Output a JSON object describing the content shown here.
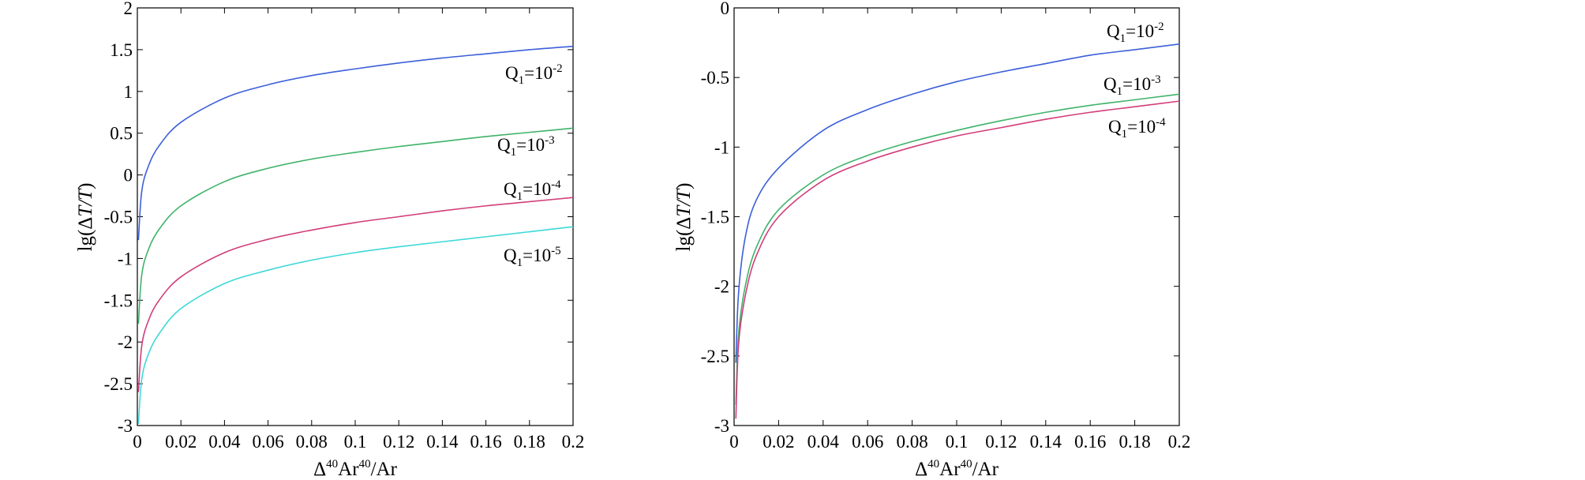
{
  "chart_data": [
    {
      "type": "line",
      "title": "",
      "xlabel": {
        "delta": "Δ",
        "sup1": "40",
        "mid": "Ar",
        "sup2": "40",
        "tail": "/Ar"
      },
      "ylabel": {
        "pre": "lg(",
        "delta": "Δ",
        "ital": "T/T",
        "post": ")"
      },
      "xlim": [
        0,
        0.2
      ],
      "ylim": [
        -3,
        2
      ],
      "xticks": [
        "0",
        "0.02",
        "0.04",
        "0.06",
        "0.08",
        "0.1",
        "0.12",
        "0.14",
        "0.16",
        "0.18",
        "0.2"
      ],
      "yticks": [
        "2",
        "1.5",
        "1",
        "0.5",
        "0",
        "-0.5",
        "-1",
        "-1.5",
        "-2",
        "-2.5",
        "-3"
      ],
      "grid": false,
      "series": [
        {
          "name": "Q1=10-2",
          "label": {
            "q": "Q",
            "sub": "1",
            "eq": "=10",
            "exp": "-2"
          },
          "color": "#3b5fd9",
          "x": [
            0.0005,
            0.002,
            0.005,
            0.01,
            0.02,
            0.04,
            0.06,
            0.08,
            0.1,
            0.12,
            0.14,
            0.16,
            0.18,
            0.2
          ],
          "y": [
            -0.78,
            -0.2,
            0.1,
            0.35,
            0.63,
            0.92,
            1.08,
            1.19,
            1.27,
            1.34,
            1.4,
            1.45,
            1.5,
            1.54
          ]
        },
        {
          "name": "Q1=10-3",
          "label": {
            "q": "Q",
            "sub": "1",
            "eq": "=10",
            "exp": "-3"
          },
          "color": "#3fb36a",
          "x": [
            0.0005,
            0.002,
            0.005,
            0.01,
            0.02,
            0.04,
            0.06,
            0.08,
            0.1,
            0.12,
            0.14,
            0.16,
            0.18,
            0.2
          ],
          "y": [
            -1.78,
            -1.2,
            -0.9,
            -0.65,
            -0.37,
            -0.08,
            0.08,
            0.19,
            0.27,
            0.34,
            0.4,
            0.46,
            0.51,
            0.56
          ]
        },
        {
          "name": "Q1=10-4",
          "label": {
            "q": "Q",
            "sub": "1",
            "eq": "=10",
            "exp": "-4"
          },
          "color": "#d23d7a",
          "x": [
            0.0005,
            0.002,
            0.005,
            0.01,
            0.02,
            0.04,
            0.06,
            0.08,
            0.1,
            0.12,
            0.14,
            0.16,
            0.18,
            0.2
          ],
          "y": [
            -2.6,
            -2.05,
            -1.75,
            -1.5,
            -1.22,
            -0.93,
            -0.77,
            -0.66,
            -0.57,
            -0.5,
            -0.43,
            -0.37,
            -0.32,
            -0.27
          ]
        },
        {
          "name": "Q1=10-5",
          "label": {
            "q": "Q",
            "sub": "1",
            "eq": "=10",
            "exp": "-5"
          },
          "color": "#3fd8d8",
          "x": [
            0.0005,
            0.002,
            0.005,
            0.01,
            0.02,
            0.04,
            0.06,
            0.08,
            0.1,
            0.12,
            0.14,
            0.16,
            0.18,
            0.2
          ],
          "y": [
            -2.98,
            -2.45,
            -2.15,
            -1.9,
            -1.6,
            -1.3,
            -1.14,
            -1.02,
            -0.93,
            -0.86,
            -0.8,
            -0.74,
            -0.68,
            -0.62
          ]
        }
      ]
    },
    {
      "type": "line",
      "title": "",
      "xlabel": {
        "delta": "Δ",
        "sup1": "40",
        "mid": "Ar",
        "sup2": "40",
        "tail": "/Ar"
      },
      "ylabel": {
        "pre": "lg(",
        "delta": "Δ",
        "ital": "T/T",
        "post": ")"
      },
      "xlim": [
        0,
        0.2
      ],
      "ylim": [
        -3,
        0
      ],
      "xticks": [
        "0",
        "0.02",
        "0.04",
        "0.06",
        "0.08",
        "0.1",
        "0.12",
        "0.14",
        "0.16",
        "0.18",
        "0.2"
      ],
      "yticks": [
        "0",
        "-0.5",
        "-1",
        "-1.5",
        "-2",
        "-2.5",
        "-3"
      ],
      "grid": false,
      "series": [
        {
          "name": "Q1=10-2",
          "label": {
            "q": "Q",
            "sub": "1",
            "eq": "=10",
            "exp": "-2"
          },
          "color": "#3b5fd9",
          "x": [
            0.0008,
            0.002,
            0.005,
            0.01,
            0.02,
            0.04,
            0.06,
            0.08,
            0.1,
            0.12,
            0.14,
            0.16,
            0.18,
            0.2
          ],
          "y": [
            -2.55,
            -2.05,
            -1.65,
            -1.38,
            -1.15,
            -0.88,
            -0.73,
            -0.62,
            -0.53,
            -0.46,
            -0.4,
            -0.34,
            -0.3,
            -0.26
          ]
        },
        {
          "name": "Q1=10-3",
          "label": {
            "q": "Q",
            "sub": "1",
            "eq": "=10",
            "exp": "-3"
          },
          "color": "#3fb36a",
          "x": [
            0.0008,
            0.002,
            0.005,
            0.01,
            0.02,
            0.04,
            0.06,
            0.08,
            0.1,
            0.12,
            0.14,
            0.16,
            0.18,
            0.2
          ],
          "y": [
            -2.85,
            -2.35,
            -2.0,
            -1.72,
            -1.45,
            -1.2,
            -1.06,
            -0.96,
            -0.88,
            -0.81,
            -0.75,
            -0.7,
            -0.66,
            -0.62
          ]
        },
        {
          "name": "Q1=10-4",
          "label": {
            "q": "Q",
            "sub": "1",
            "eq": "=10",
            "exp": "-4"
          },
          "color": "#d23d7a",
          "x": [
            0.0008,
            0.002,
            0.005,
            0.01,
            0.02,
            0.04,
            0.06,
            0.08,
            0.1,
            0.12,
            0.14,
            0.16,
            0.18,
            0.2
          ],
          "y": [
            -2.95,
            -2.42,
            -2.07,
            -1.78,
            -1.5,
            -1.24,
            -1.1,
            -1.0,
            -0.92,
            -0.86,
            -0.8,
            -0.75,
            -0.71,
            -0.67
          ]
        }
      ]
    }
  ]
}
